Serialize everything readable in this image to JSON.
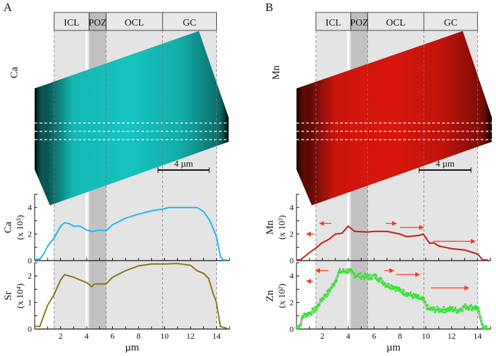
{
  "panels": [
    {
      "letter": "A",
      "image_label": "Ca",
      "image_color": "#19e6e0",
      "scale_bar": "4 µm",
      "zones": [
        "ICL",
        "POZ",
        "OCL",
        "GC"
      ],
      "x_axis_label": "µm",
      "x_ticks": [
        2,
        4,
        6,
        8,
        10,
        12,
        14
      ],
      "plots": [
        {
          "element": "Ca",
          "units": "(x 10⁵)",
          "color": "#1ab8f0",
          "ylim": [
            0,
            5
          ],
          "yticks": [
            0,
            2,
            4
          ],
          "points": [
            [
              0,
              0.1
            ],
            [
              0.4,
              0.1
            ],
            [
              0.7,
              0.5
            ],
            [
              1,
              1.1
            ],
            [
              1.5,
              1.7
            ],
            [
              2,
              2.6
            ],
            [
              2.3,
              2.85
            ],
            [
              2.6,
              2.8
            ],
            [
              3,
              2.6
            ],
            [
              3.5,
              2.6
            ],
            [
              4,
              2.3
            ],
            [
              4.4,
              2.2
            ],
            [
              5,
              2.3
            ],
            [
              5.5,
              2.25
            ],
            [
              6,
              2.7
            ],
            [
              7,
              3.2
            ],
            [
              8,
              3.5
            ],
            [
              9,
              3.75
            ],
            [
              10,
              3.9
            ],
            [
              10.3,
              4
            ],
            [
              12.5,
              4
            ],
            [
              13,
              3.7
            ],
            [
              13.5,
              3
            ],
            [
              14,
              1.8
            ],
            [
              14.3,
              0.3
            ],
            [
              14.5,
              0.05
            ],
            [
              14.8,
              0.05
            ]
          ]
        },
        {
          "element": "Sr",
          "units": "(x 10⁴)",
          "color": "#8a7416",
          "ylim": [
            0,
            2.5
          ],
          "yticks": [
            0,
            1,
            2
          ],
          "points": [
            [
              0,
              0.1
            ],
            [
              0.4,
              0.1
            ],
            [
              1,
              0.9
            ],
            [
              1.5,
              1.3
            ],
            [
              2,
              1.85
            ],
            [
              2.3,
              2.05
            ],
            [
              3,
              1.95
            ],
            [
              3.5,
              1.85
            ],
            [
              4,
              1.75
            ],
            [
              4.4,
              1.6
            ],
            [
              4.6,
              1.7
            ],
            [
              5.5,
              1.7
            ],
            [
              6,
              1.95
            ],
            [
              7,
              2.2
            ],
            [
              8,
              2.38
            ],
            [
              9,
              2.45
            ],
            [
              10,
              2.45
            ],
            [
              11,
              2.47
            ],
            [
              12,
              2.4
            ],
            [
              12.5,
              2.2
            ],
            [
              13,
              2.1
            ],
            [
              13.4,
              1.9
            ],
            [
              13.7,
              1.4
            ],
            [
              14,
              1
            ],
            [
              14.3,
              0.1
            ],
            [
              14.8,
              0.03
            ]
          ]
        }
      ]
    },
    {
      "letter": "B",
      "image_label": "Mn",
      "image_color": "#ff1a10",
      "scale_bar": "4 µm",
      "zones": [
        "ICL",
        "POZ",
        "OCL",
        "GC"
      ],
      "x_axis_label": "µm",
      "x_ticks": [
        2,
        4,
        6,
        8,
        10,
        12,
        14
      ],
      "plots": [
        {
          "element": "Mn",
          "units": "(x 10³)",
          "color": "#c41a10",
          "ylim": [
            0,
            5
          ],
          "yticks": [
            0,
            2,
            4
          ],
          "points": [
            [
              0,
              0.05
            ],
            [
              0.3,
              0.05
            ],
            [
              1,
              0.6
            ],
            [
              1.5,
              0.95
            ],
            [
              2,
              1.35
            ],
            [
              2.5,
              1.6
            ],
            [
              3,
              2
            ],
            [
              3.5,
              2.05
            ],
            [
              4,
              2.6
            ],
            [
              4.5,
              2.2
            ],
            [
              5.5,
              2.15
            ],
            [
              6,
              2.2
            ],
            [
              7,
              2.2
            ],
            [
              8,
              2
            ],
            [
              8.5,
              1.8
            ],
            [
              9,
              1.85
            ],
            [
              9.5,
              1.9
            ],
            [
              9.8,
              2
            ],
            [
              10.3,
              1.3
            ],
            [
              10.6,
              1.35
            ],
            [
              11,
              1.1
            ],
            [
              12,
              0.9
            ],
            [
              12.5,
              0.85
            ],
            [
              13,
              0.8
            ],
            [
              13.5,
              0.65
            ],
            [
              14,
              0.5
            ],
            [
              14.4,
              0.05
            ],
            [
              14.8,
              0.05
            ]
          ],
          "arrows": [
            [
              2.7,
              1.8,
              2.8
            ],
            [
              1.4,
              0.8,
              2.0
            ],
            [
              6.9,
              7.7,
              2.8
            ],
            [
              8,
              9.8,
              2.5
            ],
            [
              10.6,
              13.8,
              1.45
            ]
          ]
        },
        {
          "element": "Zn",
          "units": "(x 10²)",
          "color": "#22ee22",
          "ylim": [
            0,
            5
          ],
          "yticks": [
            0,
            2,
            4
          ],
          "scatter": true,
          "points": [
            [
              0,
              0.1
            ],
            [
              0.3,
              0.3
            ],
            [
              0.5,
              1
            ],
            [
              1,
              1.2
            ],
            [
              1.5,
              1.5
            ],
            [
              2,
              2.3
            ],
            [
              2.5,
              2.8
            ],
            [
              3,
              3.6
            ],
            [
              3.3,
              4.3
            ],
            [
              4,
              4.4
            ],
            [
              4.5,
              4.1
            ],
            [
              5,
              4
            ],
            [
              5.5,
              3.9
            ],
            [
              6,
              4
            ],
            [
              6.5,
              3.7
            ],
            [
              7,
              3.3
            ],
            [
              7.5,
              3.2
            ],
            [
              8,
              2.9
            ],
            [
              9,
              2.5
            ],
            [
              9.8,
              2.2
            ],
            [
              10.2,
              1.5
            ],
            [
              11,
              1.45
            ],
            [
              12,
              1.5
            ],
            [
              12.5,
              1.4
            ],
            [
              13,
              1.7
            ],
            [
              14,
              1.6
            ],
            [
              14.3,
              0.5
            ],
            [
              14.5,
              0.05
            ],
            [
              14.8,
              0
            ]
          ],
          "arrows": [
            [
              2.5,
              1.5,
              4.4
            ],
            [
              1.3,
              0.8,
              3.6
            ],
            [
              6.8,
              7.5,
              4.4
            ],
            [
              7.7,
              9.5,
              4.1
            ],
            [
              10.4,
              13.3,
              3.1
            ]
          ]
        }
      ]
    }
  ],
  "zone_bounds_um": [
    1.5,
    4.2,
    5.5,
    9.85,
    14
  ],
  "white_line_um": 4.0,
  "arrow_color": "#f03a20"
}
